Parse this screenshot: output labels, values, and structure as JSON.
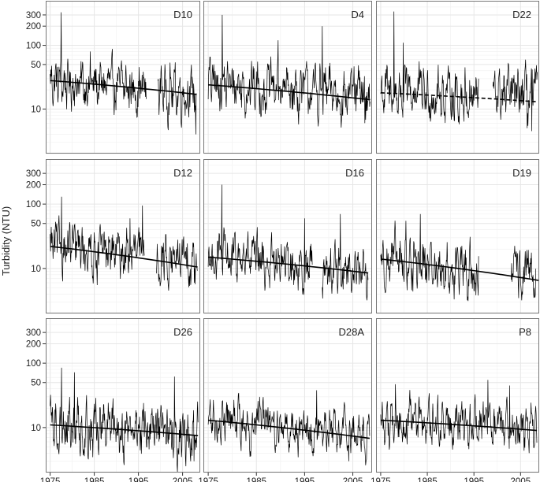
{
  "figure": {
    "ylabel": "Turbidity (NTU)",
    "colors": {
      "line": "#000000",
      "grid": "#e6e6e6",
      "frame": "#777777",
      "background": "#ffffff"
    }
  },
  "chart_data": {
    "type": "line",
    "yscale": "log",
    "ylim": [
      2,
      500
    ],
    "xlim": [
      1974,
      2009
    ],
    "grid": true,
    "y_ticks": [
      10,
      50,
      100,
      200,
      300
    ],
    "y_tick_labels": [
      "10",
      "50",
      "100",
      "200",
      "300"
    ],
    "x_ticks": [
      1975,
      1985,
      1995,
      2005
    ],
    "x_tick_labels": [
      "1975",
      "1985",
      "1995",
      "2005"
    ],
    "panels": [
      {
        "station": "D10",
        "series_range": [
          1975,
          2008.2
        ],
        "gaps": [
          [
            1996.8,
            1999.4
          ]
        ],
        "base": 27,
        "end": 18,
        "spread": 0.55,
        "spikes": [
          [
            1977.5,
            330
          ],
          [
            1984.1,
            80
          ],
          [
            2000.2,
            48
          ],
          [
            2008.0,
            4
          ]
        ],
        "trend": {
          "start": [
            1975,
            28
          ],
          "end": [
            2008.2,
            17
          ],
          "style": "solid"
        }
      },
      {
        "station": "D4",
        "series_range": [
          1975,
          2008.6
        ],
        "gaps": [],
        "base": 25,
        "end": 16,
        "spread": 0.6,
        "spikes": [
          [
            1977.9,
            300
          ],
          [
            1998.7,
            200
          ],
          [
            1989.5,
            120
          ],
          [
            2007.5,
            6
          ]
        ],
        "trend": {
          "start": [
            1975,
            24
          ],
          "end": [
            2008.6,
            14
          ],
          "style": "solid"
        }
      },
      {
        "station": "D22",
        "series_range": [
          1975,
          2008.6
        ],
        "gaps": [
          [
            1996.0,
            1999.0
          ]
        ],
        "base": 18,
        "end": 16,
        "spread": 0.6,
        "spikes": [
          [
            1977.8,
            340
          ],
          [
            1979.8,
            110
          ],
          [
            2006.4,
            5
          ],
          [
            2007.4,
            4.5
          ]
        ],
        "trend": {
          "start": [
            1975,
            18
          ],
          "end": [
            2008.6,
            13
          ],
          "style": "dashed"
        }
      },
      {
        "station": "D12",
        "series_range": [
          1975,
          2008.4
        ],
        "gaps": [
          [
            1996.4,
            1999.0
          ]
        ],
        "base": 22,
        "end": 13,
        "spread": 0.55,
        "spikes": [
          [
            1977.6,
            130
          ],
          [
            1995.9,
            95
          ],
          [
            1993.1,
            60
          ],
          [
            2007.7,
            6
          ]
        ],
        "trend": {
          "start": [
            1975,
            22
          ],
          "end": [
            2008.4,
            10.5
          ],
          "style": "solid"
        }
      },
      {
        "station": "D16",
        "series_range": [
          1975,
          2008.2
        ],
        "gaps": [
          [
            1996.6,
            1998.6
          ]
        ],
        "base": 15,
        "end": 9,
        "spread": 0.55,
        "spikes": [
          [
            1977.8,
            200
          ],
          [
            2002.4,
            70
          ],
          [
            1995.0,
            60
          ],
          [
            2007.9,
            3.2
          ]
        ],
        "trend": {
          "start": [
            1975,
            15
          ],
          "end": [
            2008.2,
            8.5
          ],
          "style": "solid"
        }
      },
      {
        "station": "D19",
        "series_range": [
          1975,
          1996.0
        ],
        "gaps": [],
        "extra_segment": [
          2003.0,
          2008.3
        ],
        "base": 14,
        "end": 8,
        "spread": 0.6,
        "spikes": [
          [
            1983.5,
            70
          ],
          [
            1980.4,
            55
          ],
          [
            2007.8,
            3.5
          ],
          [
            1995.9,
            3.8
          ]
        ],
        "trend": {
          "start": [
            1975,
            14
          ],
          "end": [
            2009,
            6.5
          ],
          "style": "solid"
        }
      },
      {
        "station": "D26",
        "series_range": [
          1975,
          2008.5
        ],
        "gaps": [],
        "base": 11,
        "end": 8,
        "spread": 0.6,
        "spikes": [
          [
            1977.6,
            85
          ],
          [
            1980.5,
            72
          ],
          [
            2003.2,
            62
          ],
          [
            2007.6,
            3
          ]
        ],
        "trend": {
          "start": [
            1975,
            11
          ],
          "end": [
            2008.5,
            7.5
          ],
          "style": "solid"
        }
      },
      {
        "station": "D28A",
        "series_range": [
          1975,
          2008.5
        ],
        "gaps": [],
        "base": 13,
        "end": 8,
        "spread": 0.5,
        "spikes": [
          [
            1997.5,
            38
          ],
          [
            1985.7,
            30
          ],
          [
            2004.2,
            3
          ],
          [
            2007.8,
            3.2
          ]
        ],
        "trend": {
          "start": [
            1975,
            13
          ],
          "end": [
            2008.5,
            6.8
          ],
          "style": "solid"
        }
      },
      {
        "station": "P8",
        "series_range": [
          1975,
          2008.5
        ],
        "gaps": [],
        "base": 12,
        "end": 10,
        "spread": 0.5,
        "spikes": [
          [
            1978.2,
            47
          ],
          [
            1998.0,
            55
          ],
          [
            2002.7,
            45
          ],
          [
            2006.8,
            4
          ]
        ],
        "trend": {
          "start": [
            1975,
            13
          ],
          "end": [
            2008.5,
            9
          ],
          "style": "solid"
        }
      }
    ]
  }
}
